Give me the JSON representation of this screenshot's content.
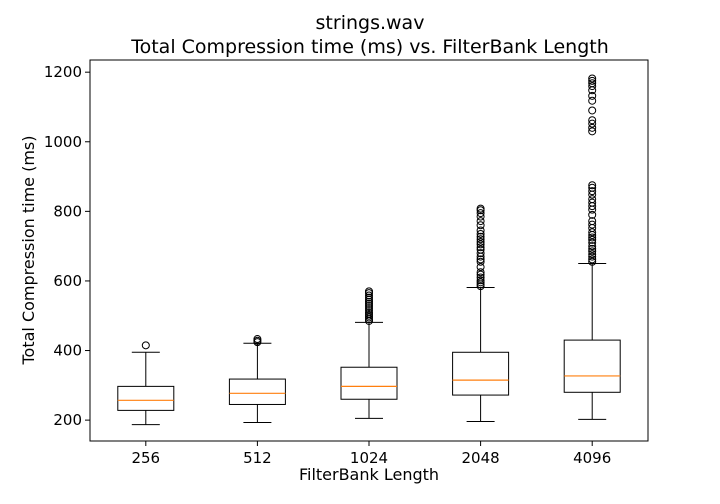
{
  "chart_data": {
    "type": "box",
    "title": "strings.wav",
    "subtitle": "Total Compression time (ms) vs. FilterBank Length",
    "xlabel": "FilterBank Length",
    "ylabel": "Total Compression time (ms)",
    "ylim": [
      140,
      1235
    ],
    "yticks": [
      200,
      400,
      600,
      800,
      1000,
      1200
    ],
    "categories": [
      "256",
      "512",
      "1024",
      "2048",
      "4096"
    ],
    "boxes": [
      {
        "category": "256",
        "whisker_low": 187,
        "q1": 228,
        "median": 257,
        "q3": 297,
        "whisker_high": 395,
        "outliers": [
          415
        ]
      },
      {
        "category": "512",
        "whisker_low": 193,
        "q1": 245,
        "median": 277,
        "q3": 318,
        "whisker_high": 421,
        "outliers": [
          424,
          428,
          433
        ]
      },
      {
        "category": "1024",
        "whisker_low": 205,
        "q1": 260,
        "median": 297,
        "q3": 352,
        "whisker_high": 481,
        "outliers": [
          485,
          490,
          495,
          500,
          505,
          510,
          516,
          522,
          528,
          534,
          540,
          546,
          552,
          558,
          565,
          570
        ]
      },
      {
        "category": "2048",
        "whisker_low": 196,
        "q1": 272,
        "median": 315,
        "q3": 395,
        "whisker_high": 581,
        "outliers": [
          585,
          590,
          596,
          602,
          610,
          618,
          625,
          640,
          655,
          662,
          670,
          680,
          690,
          697,
          705,
          712,
          720,
          727,
          735,
          745,
          760,
          772,
          785,
          795,
          803,
          808
        ]
      },
      {
        "category": "4096",
        "whisker_low": 202,
        "q1": 280,
        "median": 327,
        "q3": 430,
        "whisker_high": 650,
        "outliers": [
          655,
          662,
          670,
          677,
          685,
          692,
          700,
          710,
          718,
          725,
          732,
          740,
          752,
          762,
          772,
          790,
          805,
          815,
          825,
          835,
          848,
          858,
          868,
          875,
          1030,
          1040,
          1052,
          1062,
          1090,
          1118,
          1132,
          1148,
          1160,
          1168,
          1175,
          1182
        ]
      }
    ],
    "colors": {
      "box": "#000000",
      "median": "#ff7f0e",
      "outlier": "#000000"
    },
    "grid": false,
    "legend": "none"
  }
}
